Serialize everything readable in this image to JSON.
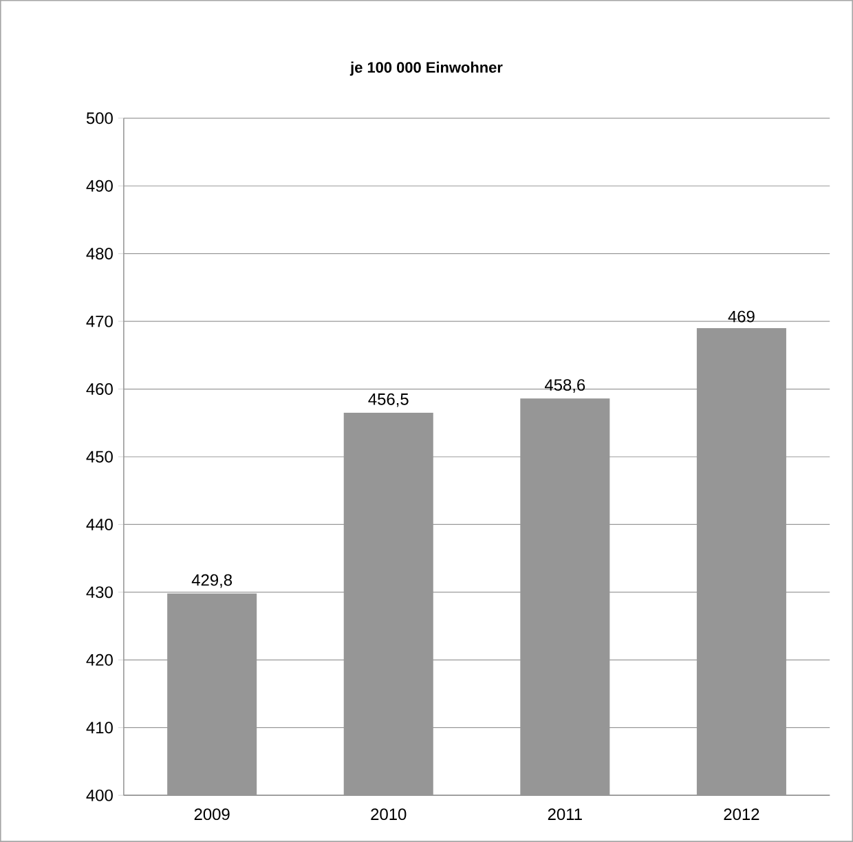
{
  "chart_data": {
    "type": "bar",
    "title": "je 100 000 Einwohner",
    "categories": [
      "2009",
      "2010",
      "2011",
      "2012"
    ],
    "values": [
      429.8,
      456.5,
      458.6,
      469
    ],
    "value_labels": [
      "429,8",
      "456,5",
      "458,6",
      "469"
    ],
    "color": "#969696",
    "ylim": [
      400,
      500
    ],
    "yticks": [
      400,
      410,
      420,
      430,
      440,
      450,
      460,
      470,
      480,
      490,
      500
    ],
    "grid": "y"
  }
}
